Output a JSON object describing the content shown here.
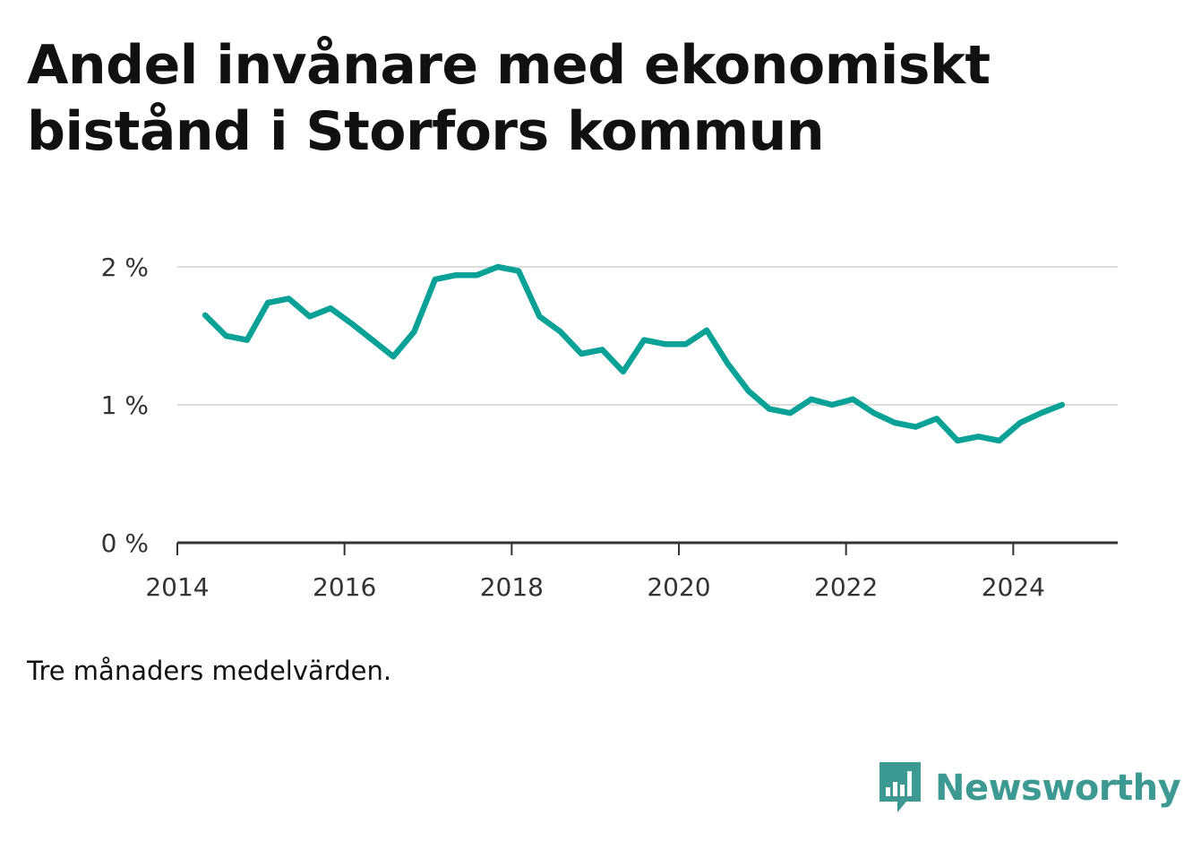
{
  "title": "Andel invånare med ekonomiskt bistånd i Storfors kommun",
  "note": "Tre månaders medelvärden.",
  "brand": {
    "name": "Newsworthy",
    "color": "#3d9a92",
    "icon": "newsworthy-bar-chart-icon"
  },
  "colors": {
    "line": "#0aa197",
    "grid": "#dddddd",
    "axis": "#333333"
  },
  "chart_data": {
    "type": "line",
    "title": "Andel invånare med ekonomiskt bistånd i Storfors kommun",
    "xlabel": "",
    "ylabel": "",
    "x_ticks": [
      "2014",
      "2016",
      "2018",
      "2020",
      "2022",
      "2024"
    ],
    "y_ticks": [
      {
        "value": 0,
        "label": "0 %"
      },
      {
        "value": 1,
        "label": "1 %"
      },
      {
        "value": 2,
        "label": "2 %"
      }
    ],
    "ylim": [
      0,
      2
    ],
    "xlim": [
      "2014-01",
      "2025-04"
    ],
    "grid": true,
    "series": [
      {
        "points": [
          [
            "2014-05",
            1.65
          ],
          [
            "2014-08",
            1.5
          ],
          [
            "2014-11",
            1.47
          ],
          [
            "2015-02",
            1.74
          ],
          [
            "2015-05",
            1.77
          ],
          [
            "2015-08",
            1.64
          ],
          [
            "2015-11",
            1.7
          ],
          [
            "2016-02",
            1.59
          ],
          [
            "2016-05",
            1.47
          ],
          [
            "2016-08",
            1.35
          ],
          [
            "2016-11",
            1.53
          ],
          [
            "2017-02",
            1.91
          ],
          [
            "2017-05",
            1.94
          ],
          [
            "2017-08",
            1.94
          ],
          [
            "2017-11",
            2.0
          ],
          [
            "2018-02",
            1.97
          ],
          [
            "2018-05",
            1.64
          ],
          [
            "2018-08",
            1.53
          ],
          [
            "2018-11",
            1.37
          ],
          [
            "2019-02",
            1.4
          ],
          [
            "2019-05",
            1.24
          ],
          [
            "2019-08",
            1.47
          ],
          [
            "2019-11",
            1.44
          ],
          [
            "2020-02",
            1.44
          ],
          [
            "2020-05",
            1.54
          ],
          [
            "2020-08",
            1.3
          ],
          [
            "2020-11",
            1.1
          ],
          [
            "2021-02",
            0.97
          ],
          [
            "2021-05",
            0.94
          ],
          [
            "2021-08",
            1.04
          ],
          [
            "2021-11",
            1.0
          ],
          [
            "2022-02",
            1.04
          ],
          [
            "2022-05",
            0.94
          ],
          [
            "2022-08",
            0.87
          ],
          [
            "2022-11",
            0.84
          ],
          [
            "2023-02",
            0.9
          ],
          [
            "2023-05",
            0.74
          ],
          [
            "2023-08",
            0.77
          ],
          [
            "2023-11",
            0.74
          ],
          [
            "2024-02",
            0.87
          ],
          [
            "2024-05",
            0.94
          ],
          [
            "2024-08",
            1.0
          ]
        ]
      }
    ]
  }
}
